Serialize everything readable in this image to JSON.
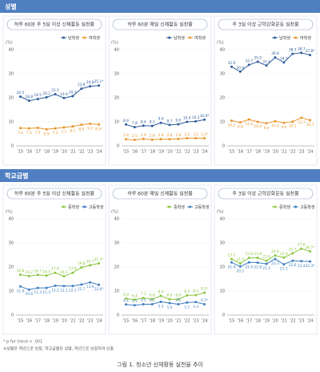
{
  "sections": [
    "성별",
    "학교급별"
  ],
  "notes": [
    "* p for trend < .001",
    "※성별은 학년으로 보정, 학교급별은 성별, 학년으로 보정하여 산출"
  ],
  "caption": "그림 1. 청소년 신체활동 실천율 추이",
  "chart_data": [
    {
      "type": "line",
      "title": "하루 60분 주 5일 이상 신체활동 실천율",
      "y_label": "(%)",
      "categories": [
        "'15",
        "'16",
        "'17",
        "'18",
        "'19",
        "'20",
        "'21",
        "'22",
        "'23",
        "'24"
      ],
      "ylim": [
        0,
        40
      ],
      "yticks": [
        0,
        10,
        20,
        30,
        40
      ],
      "grid": true,
      "series": [
        {
          "name": "남학생",
          "color": "#2f5d9c",
          "values": [
            20.5,
            18.8,
            19.5,
            20.2,
            21.5,
            19.9,
            20.7,
            23.8,
            24.8,
            25.1
          ],
          "value_labels": [
            "20.5",
            "18.8",
            "19.5",
            "20.2",
            "21.5",
            "19.9",
            "20.7",
            "23.8",
            "24.8",
            "25.1*"
          ]
        },
        {
          "name": "여학생",
          "color": "#e8962e",
          "values": [
            7.4,
            7.3,
            7.5,
            6.9,
            7.3,
            7.7,
            8.1,
            8.8,
            9.2,
            8.9
          ],
          "value_labels": [
            "7.4",
            "7.3",
            "7.5",
            "6.9",
            "7.3",
            "7.7",
            "8.1",
            "8.8",
            "9.2",
            "8.9*"
          ]
        }
      ]
    },
    {
      "type": "line",
      "title": "하루 60분 매일 신체활동 실천율",
      "y_label": "(%)",
      "categories": [
        "'15",
        "'16",
        "'17",
        "'18",
        "'19",
        "'20",
        "'21",
        "'22",
        "'23",
        "'24"
      ],
      "ylim": [
        0,
        40
      ],
      "yticks": [
        0,
        10,
        20,
        30,
        40
      ],
      "grid": true,
      "series": [
        {
          "name": "남학생",
          "color": "#2f5d9c",
          "values": [
            8.9,
            7.8,
            8.4,
            8.3,
            9.6,
            8.7,
            9.0,
            10.0,
            10.2,
            10.9
          ],
          "value_labels": [
            "8.9",
            "7.8",
            "8.4",
            "8.3",
            "9.6",
            "8.7",
            "9.0",
            "10.0",
            "10.2",
            "10.9*"
          ]
        },
        {
          "name": "여학생",
          "color": "#e8962e",
          "values": [
            2.8,
            2.5,
            2.9,
            2.6,
            2.8,
            2.8,
            2.9,
            3.2,
            3.2,
            3.2
          ],
          "value_labels": [
            "2.8",
            "2.5",
            "2.9",
            "2.6",
            "2.8",
            "2.8",
            "2.9",
            "3.2",
            "3.2",
            "3.2*"
          ]
        }
      ]
    },
    {
      "type": "line",
      "title": "주 3일 이상 근력강화운동 실천율",
      "y_label": "(%)",
      "categories": [
        "'15",
        "'16",
        "'17",
        "'18",
        "'19",
        "'20",
        "'21",
        "'22",
        "'23",
        "'24"
      ],
      "ylim": [
        0,
        40
      ],
      "yticks": [
        0,
        10,
        20,
        30,
        40
      ],
      "grid": true,
      "series": [
        {
          "name": "남학생",
          "color": "#2f5d9c",
          "values": [
            32.9,
            30.9,
            33.7,
            35.0,
            33.4,
            36.8,
            34.7,
            38.3,
            38.7,
            37.8
          ],
          "value_labels": [
            "32.9",
            "30.9",
            "33.7",
            "35.0",
            "33.4",
            "36.8",
            "34.7",
            "38.3",
            "38.7",
            "37.8*"
          ]
        },
        {
          "name": "여학생",
          "color": "#e8962e",
          "values": [
            10.5,
            9.8,
            11.0,
            10.0,
            9.4,
            10.3,
            9.6,
            10.1,
            11.7,
            10.7
          ],
          "value_labels": [
            "10.5",
            "9.8",
            "11.0",
            "10.0",
            "9.4",
            "10.3",
            "9.6",
            "10.1",
            "11.7",
            "10.7"
          ]
        }
      ]
    },
    {
      "type": "line",
      "title": "하루 60분 주 5일 이상 신체활동 실천율",
      "y_label": "(%)",
      "categories": [
        "'15",
        "'16",
        "'17",
        "'18",
        "'19",
        "'20",
        "'21",
        "'22",
        "'23",
        "'24"
      ],
      "ylim": [
        0,
        40
      ],
      "yticks": [
        0,
        10,
        20,
        30,
        40
      ],
      "grid": true,
      "series": [
        {
          "name": "중학생",
          "color": "#8dc63f",
          "values": [
            16.8,
            16.2,
            16.7,
            16.4,
            17.6,
            16.1,
            17.6,
            19.8,
            20.7,
            21.5
          ],
          "value_labels": [
            "16.8",
            "16.2",
            "16.7",
            "16.4",
            "17.6",
            "16.1",
            "17.6",
            "19.8",
            "20.7",
            "21.5*"
          ]
        },
        {
          "name": "고등학생",
          "color": "#3f7fc1",
          "values": [
            11.9,
            10.6,
            11.3,
            11.3,
            12.2,
            12.1,
            12.1,
            12.7,
            13.6,
            12.6
          ],
          "value_labels": [
            "11.9",
            "10.6",
            "11.3",
            "11.3",
            "12.2",
            "12.1",
            "12.1",
            "12.7",
            "13.6",
            "12.6*"
          ]
        }
      ]
    },
    {
      "type": "line",
      "title": "하루 60분 매일 신체활동 실천율",
      "y_label": "(%)",
      "categories": [
        "'15",
        "'16",
        "'17",
        "'18",
        "'19",
        "'20",
        "'21",
        "'22",
        "'23",
        "'24"
      ],
      "ylim": [
        0,
        40
      ],
      "yticks": [
        0,
        10,
        20,
        30,
        40
      ],
      "grid": true,
      "series": [
        {
          "name": "중학생",
          "color": "#8dc63f",
          "values": [
            6.9,
            6.4,
            7.1,
            6.6,
            8.0,
            6.6,
            6.6,
            8.2,
            8.3,
            9.3
          ],
          "value_labels": [
            "6.9",
            "6.4",
            "7.1",
            "6.6",
            "8.0",
            "6.6",
            "6.6",
            "8.2",
            "8.3",
            "9.3*"
          ]
        },
        {
          "name": "고등학생",
          "color": "#3f7fc1",
          "values": [
            4.4,
            4.1,
            4.5,
            4.5,
            5.5,
            5.0,
            4.5,
            5.2,
            5.4,
            4.5
          ],
          "value_labels": [
            "4.4",
            "4.1",
            "4.5",
            "4.5",
            "5.5",
            "5.0",
            "4.5",
            "5.2",
            "5.4",
            "4.5*"
          ]
        }
      ]
    },
    {
      "type": "line",
      "title": "주 3일 이상 근력강화운동 실천율",
      "y_label": "(%)",
      "categories": [
        "'15",
        "'16",
        "'17",
        "'18",
        "'19",
        "'20",
        "'21",
        "'22",
        "'23",
        "'24"
      ],
      "ylim": [
        0,
        40
      ],
      "yticks": [
        0,
        10,
        20,
        30,
        40
      ],
      "grid": true,
      "series": [
        {
          "name": "중학생",
          "color": "#8dc63f",
          "values": [
            23.3,
            21.5,
            23.8,
            23.8,
            22.6,
            24.8,
            23.9,
            25.7,
            27.6,
            26.5
          ],
          "value_labels": [
            "23.3",
            "21.5",
            "23.8",
            "23.8",
            "22.6",
            "24.8",
            "23.9",
            "25.7",
            "27.6",
            "26.5*"
          ]
        },
        {
          "name": "고등학생",
          "color": "#3f7fc1",
          "values": [
            21.9,
            20.2,
            21.9,
            21.8,
            21.3,
            23.3,
            21.1,
            22.6,
            22.4,
            22.3
          ],
          "value_labels": [
            "21.9",
            "20.2",
            "21.9",
            "21.8",
            "21.3",
            "23.3",
            "21.1",
            "22.6",
            "22.4",
            "22.3*"
          ]
        }
      ]
    }
  ]
}
